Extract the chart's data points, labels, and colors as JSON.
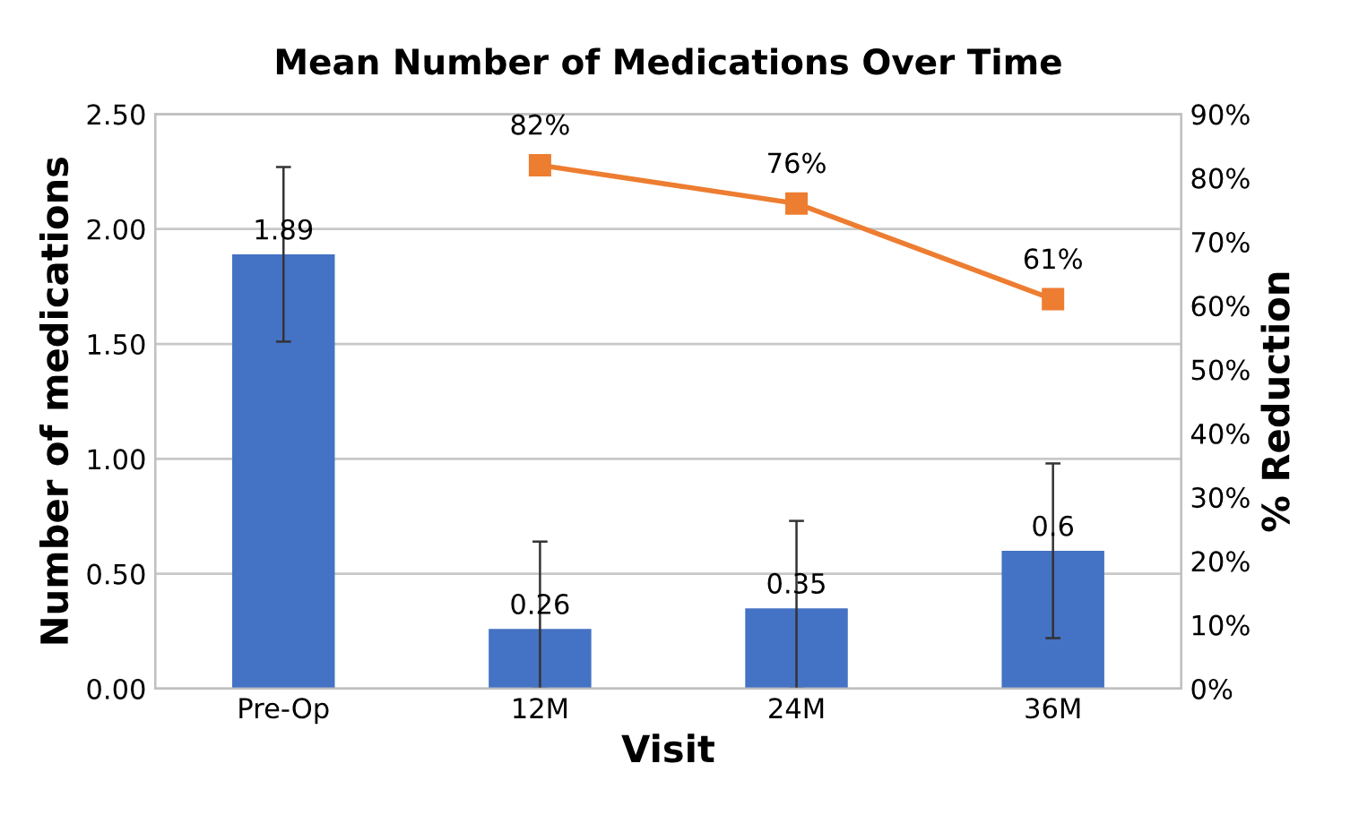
{
  "chart_data": {
    "type": "bar",
    "title": "Mean Number of Medications Over Time",
    "xlabel": "Visit",
    "ylabel": "Number of medications",
    "y2label": "% Reduction",
    "categories": [
      "Pre-Op",
      "12M",
      "24M",
      "36M"
    ],
    "series": [
      {
        "color": "#4472c4",
        "values": [
          1.89,
          0.26,
          0.35,
          0.6
        ],
        "errors": [
          0.38,
          [
            0,
            0.64
          ],
          [
            0,
            0.73
          ],
          0.38
        ],
        "value_labels": [
          "1.89",
          "0.26",
          "0.35",
          "0.6"
        ]
      },
      {
        "type": "line",
        "axis": "y2",
        "color": "#ed7d31",
        "values": [
          null,
          82,
          76,
          61
        ],
        "value_labels": [
          null,
          "82%",
          "76%",
          "61%"
        ],
        "marker": "square",
        "line_style": "solid"
      }
    ],
    "ylim": [
      0,
      2.5
    ],
    "yticks": [
      {
        "value": 0,
        "label": "0.00"
      },
      {
        "value": 0.5,
        "label": "0.50"
      },
      {
        "value": 1,
        "label": "1.00"
      },
      {
        "value": 1.5,
        "label": "1.50"
      },
      {
        "value": 2,
        "label": "2.00"
      },
      {
        "value": 2.5,
        "label": "2.50"
      }
    ],
    "y2lim": [
      0,
      90
    ],
    "y2ticks": [
      {
        "value": 0,
        "label": "0%"
      },
      {
        "value": 10,
        "label": "10%"
      },
      {
        "value": 20,
        "label": "20%"
      },
      {
        "value": 30,
        "label": "30%"
      },
      {
        "value": 40,
        "label": "40%"
      },
      {
        "value": 50,
        "label": "50%"
      },
      {
        "value": 60,
        "label": "60%"
      },
      {
        "value": 70,
        "label": "70%"
      },
      {
        "value": 80,
        "label": "80%"
      },
      {
        "value": 90,
        "label": "90%"
      }
    ],
    "grid": "y",
    "legend": false
  }
}
